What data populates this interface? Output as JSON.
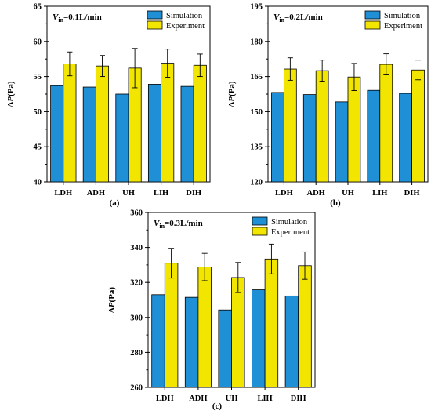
{
  "chart_data": [
    {
      "type": "bar",
      "panel_label": "(a)",
      "condition": {
        "var": "V",
        "sub": "in",
        "value": "=0.1L/min"
      },
      "ylabel": {
        "prefix": "Δ",
        "var": "P",
        "unit": "(Pa)"
      },
      "ylim": [
        40,
        65
      ],
      "yticks": [
        40,
        45,
        50,
        55,
        60,
        65
      ],
      "categories": [
        "LDH",
        "ADH",
        "UH",
        "LIH",
        "DIH"
      ],
      "series": [
        {
          "name": "Simulation",
          "color": "#1f8fd6",
          "values": [
            53.7,
            53.5,
            52.5,
            53.9,
            53.6
          ]
        },
        {
          "name": "Experiment",
          "color": "#f2e600",
          "values": [
            56.8,
            56.5,
            56.2,
            56.9,
            56.6
          ],
          "errors": [
            1.7,
            1.5,
            2.8,
            2.0,
            1.6
          ]
        }
      ],
      "legend_position": "top-right"
    },
    {
      "type": "bar",
      "panel_label": "(b)",
      "condition": {
        "var": "V",
        "sub": "in",
        "value": "=0.2L/min"
      },
      "ylabel": {
        "prefix": "Δ",
        "var": "P",
        "unit": "(Pa)"
      },
      "ylim": [
        120,
        195
      ],
      "yticks": [
        120,
        135,
        150,
        165,
        180,
        195
      ],
      "categories": [
        "LDH",
        "ADH",
        "UH",
        "LIH",
        "DIH"
      ],
      "series": [
        {
          "name": "Simulation",
          "color": "#1f8fd6",
          "values": [
            158.2,
            157.3,
            154.2,
            159.1,
            157.8
          ]
        },
        {
          "name": "Experiment",
          "color": "#f2e600",
          "values": [
            168.2,
            167.5,
            164.8,
            170.2,
            167.8
          ],
          "errors": [
            4.8,
            4.5,
            5.8,
            4.5,
            4.2
          ]
        }
      ],
      "legend_position": "top-right"
    },
    {
      "type": "bar",
      "panel_label": "(c)",
      "condition": {
        "var": "V",
        "sub": "in",
        "value": "=0.3L/min"
      },
      "ylabel": {
        "prefix": "Δ",
        "var": "P",
        "unit": "(Pa)"
      },
      "ylim": [
        260,
        360
      ],
      "yticks": [
        260,
        280,
        300,
        320,
        340,
        360
      ],
      "categories": [
        "LDH",
        "ADH",
        "UH",
        "LIH",
        "DIH"
      ],
      "series": [
        {
          "name": "Simulation",
          "color": "#1f8fd6",
          "values": [
            313.0,
            311.5,
            304.3,
            315.8,
            312.3
          ]
        },
        {
          "name": "Experiment",
          "color": "#f2e600",
          "values": [
            331.0,
            328.8,
            322.8,
            333.4,
            329.6
          ],
          "errors": [
            8.5,
            7.8,
            8.6,
            8.5,
            7.8
          ]
        }
      ],
      "legend_position": "top-right"
    }
  ]
}
